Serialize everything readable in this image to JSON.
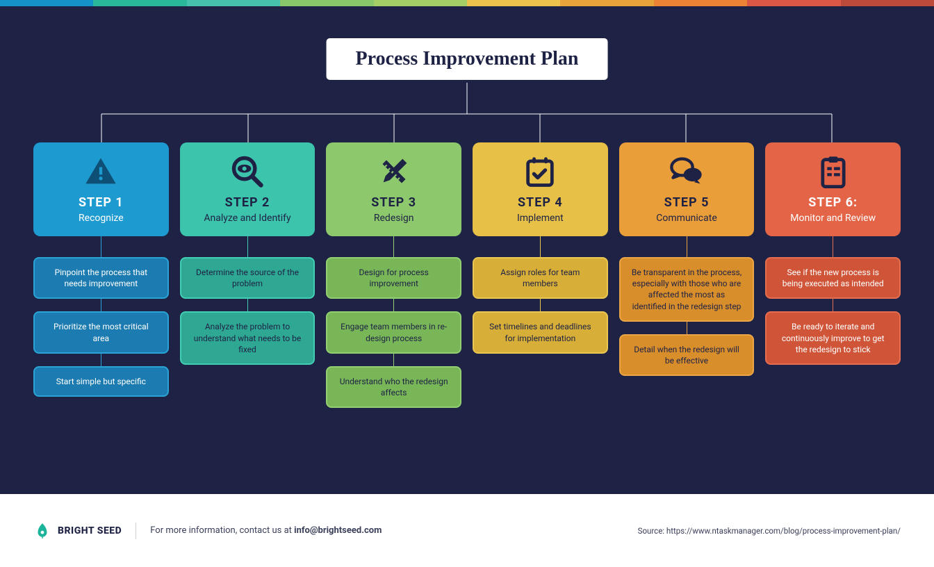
{
  "title": "Process Improvement Plan",
  "background_color": "#1e2244",
  "stripe_colors": [
    "#1493c8",
    "#29b99a",
    "#46c1ae",
    "#88c86a",
    "#a3cf66",
    "#ecc34c",
    "#e8a33a",
    "#ec8435",
    "#dd5844",
    "#bd4a3a"
  ],
  "tree_line_color": "#ffffff",
  "steps": [
    {
      "num": "STEP 1",
      "label": "Recognize",
      "icon": "warning-triangle",
      "bg": "#1d9bd1",
      "text": "#ffffff",
      "icon_color": "#0e4f75",
      "sub_bg": "#1c7bb0",
      "sub_border": "#2aa3d6",
      "sub_text": "#ffffff",
      "subs": [
        "Pinpoint the process that needs improvement",
        "Prioritize the most critical area",
        "Start simple but specific"
      ]
    },
    {
      "num": "STEP 2",
      "label": "Analyze and Identify",
      "icon": "magnifier-eye",
      "bg": "#3cc4ad",
      "text": "#1e2244",
      "icon_color": "#1e2244",
      "sub_bg": "#2ea893",
      "sub_border": "#42cdb5",
      "sub_text": "#1e2244",
      "subs": [
        "Determine the source of the problem",
        "Analyze the problem to understand what needs to be fixed"
      ]
    },
    {
      "num": "STEP 3",
      "label": "Redesign",
      "icon": "pencil-ruler",
      "bg": "#8dc96c",
      "text": "#1e2244",
      "icon_color": "#1e2244",
      "sub_bg": "#78b658",
      "sub_border": "#92cf70",
      "sub_text": "#1e2244",
      "subs": [
        "Design for process improvement",
        "Engage team members in re-design process",
        "Understand who the redesign affects"
      ]
    },
    {
      "num": "STEP 4",
      "label": "Implement",
      "icon": "calendar-check",
      "bg": "#e7c048",
      "text": "#1e2244",
      "icon_color": "#1e2244",
      "sub_bg": "#d6ae38",
      "sub_border": "#eac653",
      "sub_text": "#1e2244",
      "subs": [
        "Assign roles for team members",
        "Set timelines and deadlines for implementation"
      ]
    },
    {
      "num": "STEP 5",
      "label": "Communicate",
      "icon": "chat-bubbles",
      "bg": "#ea9e3a",
      "text": "#1e2244",
      "icon_color": "#1e2244",
      "sub_bg": "#d98e2c",
      "sub_border": "#eca546",
      "sub_text": "#1e2244",
      "subs": [
        "Be transparent in the process, especially with those who are affected the most as identified in the redesign step",
        "Detail when the redesign will be effective"
      ]
    },
    {
      "num": "STEP 6:",
      "label": "Monitor and Review",
      "icon": "clipboard-check",
      "bg": "#e36446",
      "text": "#ffffff",
      "icon_color": "#1e2244",
      "sub_bg": "#cf5438",
      "sub_border": "#e66d50",
      "sub_text": "#ffffff",
      "subs": [
        "See if the new process is being executed as intended",
        "Be ready to iterate and continuously improve to get the redesign to stick"
      ]
    }
  ],
  "footer": {
    "brand": "BRIGHT SEED",
    "brand_color": "#1bb39a",
    "contact_prefix": "For more information, contact us at ",
    "contact_email": "info@brightseed.com",
    "source": "Source: https://www.ntaskmanager.com/blog/process-improvement-plan/"
  }
}
